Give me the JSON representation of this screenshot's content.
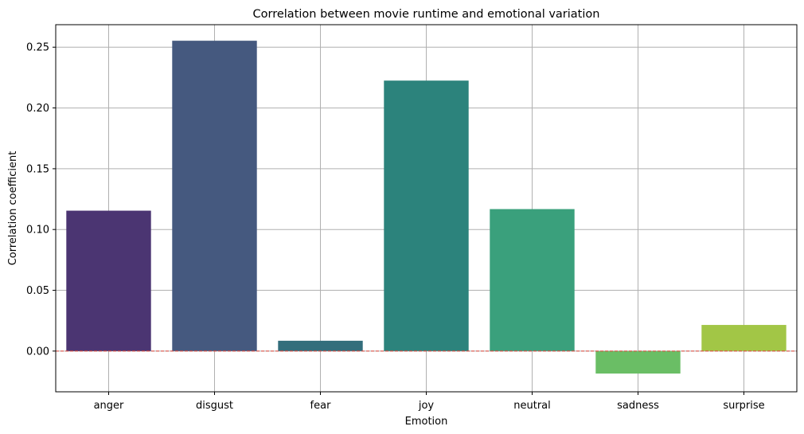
{
  "chart_data": {
    "type": "bar",
    "title": "Correlation between movie runtime and emotional variation",
    "xlabel": "Emotion",
    "ylabel": "Correlation coefficient",
    "categories": [
      "anger",
      "disgust",
      "fear",
      "joy",
      "neutral",
      "sadness",
      "surprise"
    ],
    "values": [
      0.1155,
      0.2553,
      0.0085,
      0.2225,
      0.1168,
      -0.0185,
      0.0215
    ],
    "colors": [
      "#4b3572",
      "#45597f",
      "#336e7c",
      "#2c837c",
      "#3aa07c",
      "#6abe65",
      "#a2c646"
    ],
    "ylim": [
      -0.0335,
      0.2685
    ],
    "yticks": [
      0.0,
      0.05,
      0.1,
      0.15,
      0.2,
      0.25
    ],
    "ytick_labels": [
      "0.00",
      "0.05",
      "0.10",
      "0.15",
      "0.20",
      "0.25"
    ],
    "reference_line": {
      "y": 0,
      "color": "#e0463a",
      "style": "dashed"
    },
    "grid": true,
    "legend": "none"
  }
}
